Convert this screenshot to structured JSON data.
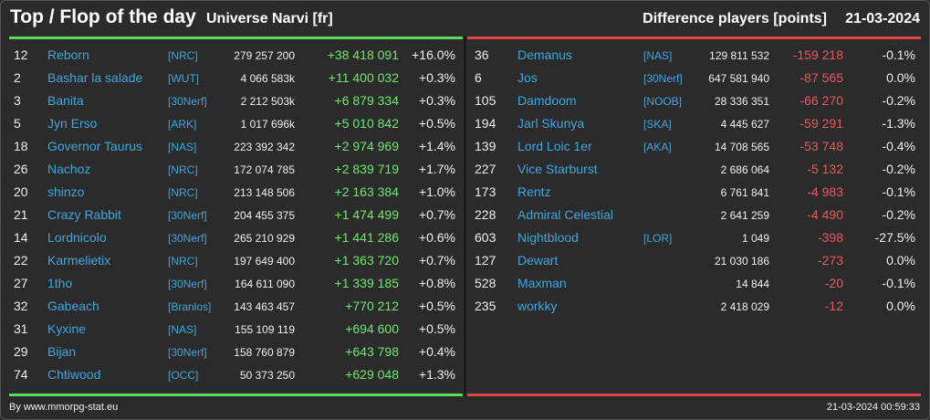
{
  "header": {
    "title": "Top / Flop of the day",
    "universe": "Universe Narvi [fr]",
    "difference_label": "Difference players [points]",
    "date": "21-03-2024"
  },
  "colors": {
    "top_accent": "#5bdc5b",
    "flop_accent": "#e04848",
    "link": "#3da7e0",
    "background": "#2b2b2b"
  },
  "top": [
    {
      "rank": "12",
      "name": "Reborn",
      "alliance": "[NRC]",
      "points": "279 257 200",
      "diff": "+38 418 091",
      "pct": "+16.0%"
    },
    {
      "rank": "2",
      "name": "Bashar la salade",
      "alliance": "[WUT]",
      "points": "4 066 583k",
      "diff": "+11 400 032",
      "pct": "+0.3%"
    },
    {
      "rank": "3",
      "name": "Banita",
      "alliance": "[30Nerf]",
      "points": "2 212 503k",
      "diff": "+6 879 334",
      "pct": "+0.3%"
    },
    {
      "rank": "5",
      "name": "Jyn Erso",
      "alliance": "[ARK]",
      "points": "1 017 696k",
      "diff": "+5 010 842",
      "pct": "+0.5%"
    },
    {
      "rank": "18",
      "name": "Governor Taurus",
      "alliance": "[NAS]",
      "points": "223 392 342",
      "diff": "+2 974 969",
      "pct": "+1.4%"
    },
    {
      "rank": "26",
      "name": "Nachoz",
      "alliance": "[NRC]",
      "points": "172 074 785",
      "diff": "+2 839 719",
      "pct": "+1.7%"
    },
    {
      "rank": "20",
      "name": "shinzo",
      "alliance": "[NRC]",
      "points": "213 148 506",
      "diff": "+2 163 384",
      "pct": "+1.0%"
    },
    {
      "rank": "21",
      "name": "Crazy Rabbit",
      "alliance": "[30Nerf]",
      "points": "204 455 375",
      "diff": "+1 474 499",
      "pct": "+0.7%"
    },
    {
      "rank": "14",
      "name": "Lordnicolo",
      "alliance": "[30Nerf]",
      "points": "265 210 929",
      "diff": "+1 441 286",
      "pct": "+0.6%"
    },
    {
      "rank": "22",
      "name": "Karmelietix",
      "alliance": "[NRC]",
      "points": "197 649 400",
      "diff": "+1 363 720",
      "pct": "+0.7%"
    },
    {
      "rank": "27",
      "name": "1tho",
      "alliance": "[30Nerf]",
      "points": "164 611 090",
      "diff": "+1 339 185",
      "pct": "+0.8%"
    },
    {
      "rank": "32",
      "name": "Gabeach",
      "alliance": "[Branlos]",
      "points": "143 463 457",
      "diff": "+770 212",
      "pct": "+0.5%"
    },
    {
      "rank": "31",
      "name": "Kyxine",
      "alliance": "[NAS]",
      "points": "155 109 119",
      "diff": "+694 600",
      "pct": "+0.5%"
    },
    {
      "rank": "29",
      "name": "Bijan",
      "alliance": "[30Nerf]",
      "points": "158 760 879",
      "diff": "+643 798",
      "pct": "+0.4%"
    },
    {
      "rank": "74",
      "name": "Chtiwood",
      "alliance": "[OCC]",
      "points": "50 373 250",
      "diff": "+629 048",
      "pct": "+1.3%"
    }
  ],
  "flop": [
    {
      "rank": "36",
      "name": "Demanus",
      "alliance": "[NAS]",
      "points": "129 811 532",
      "diff": "-159 218",
      "pct": "-0.1%"
    },
    {
      "rank": "6",
      "name": "Jos",
      "alliance": "[30Nerf]",
      "points": "647 581 940",
      "diff": "-87 565",
      "pct": "0.0%"
    },
    {
      "rank": "105",
      "name": "Damdoom",
      "alliance": "[NOOB]",
      "points": "28 336 351",
      "diff": "-66 270",
      "pct": "-0.2%"
    },
    {
      "rank": "194",
      "name": "Jarl Skunya",
      "alliance": "[SKA]",
      "points": "4 445 627",
      "diff": "-59 291",
      "pct": "-1.3%"
    },
    {
      "rank": "139",
      "name": "Lord Loic 1er",
      "alliance": "[AKA]",
      "points": "14 708 565",
      "diff": "-53 748",
      "pct": "-0.4%"
    },
    {
      "rank": "227",
      "name": "Vice Starburst",
      "alliance": "",
      "points": "2 686 064",
      "diff": "-5 132",
      "pct": "-0.2%"
    },
    {
      "rank": "173",
      "name": "Rentz",
      "alliance": "",
      "points": "6 761 841",
      "diff": "-4 983",
      "pct": "-0.1%"
    },
    {
      "rank": "228",
      "name": "Admiral Celestial",
      "alliance": "",
      "points": "2 641 259",
      "diff": "-4 490",
      "pct": "-0.2%"
    },
    {
      "rank": "603",
      "name": "Nightblood",
      "alliance": "[LOR]",
      "points": "1 049",
      "diff": "-398",
      "pct": "-27.5%"
    },
    {
      "rank": "127",
      "name": "Dewart",
      "alliance": "",
      "points": "21 030 186",
      "diff": "-273",
      "pct": "0.0%"
    },
    {
      "rank": "528",
      "name": "Maxman",
      "alliance": "",
      "points": "14 844",
      "diff": "-20",
      "pct": "-0.1%"
    },
    {
      "rank": "235",
      "name": "workky",
      "alliance": "",
      "points": "2 418 029",
      "diff": "-12",
      "pct": "0.0%"
    }
  ],
  "footer": {
    "credit": "By www.mmorpg-stat.eu",
    "timestamp": "21-03-2024 00:59:33"
  }
}
